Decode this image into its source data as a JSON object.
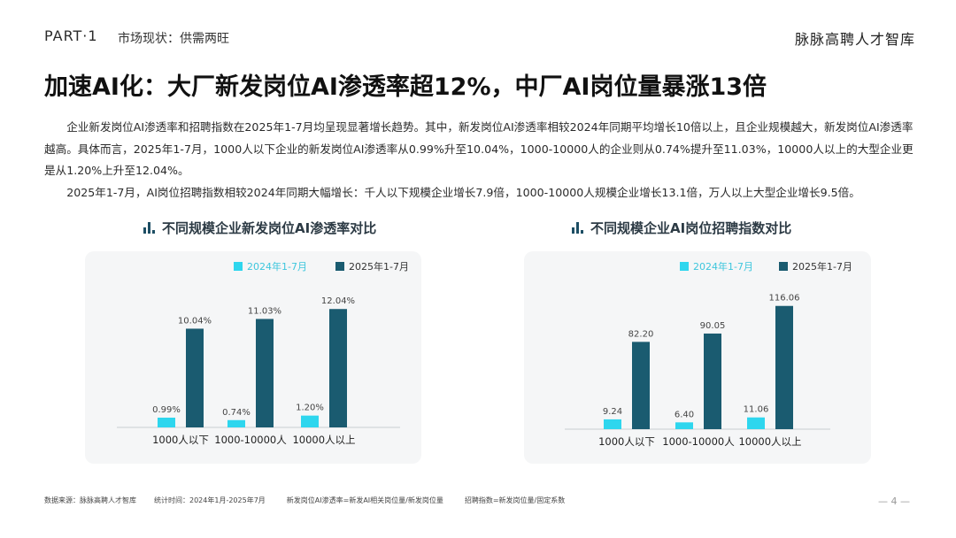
{
  "header": {
    "part": "PART·1",
    "section": "市场现状：供需两旺",
    "brand": "脉脉高聘人才智库"
  },
  "headline": "加速AI化：大厂新发岗位AI渗透率超12%，中厂AI岗位量暴涨13倍",
  "body": {
    "paragraph1": "企业新发岗位AI渗透率和招聘指数在2025年1-7月均呈现显著增长趋势。其中，新发岗位AI渗透率相较2024年同期平均增长10倍以上，且企业规模越大，新发岗位AI渗透率越高。具体而言，2025年1-7月，1000人以下企业的新发岗位AI渗透率从0.99%升至10.04%，1000-10000人的企业则从0.74%提升至11.03%，10000人以上的大型企业更是从1.20%上升至12.04%。",
    "paragraph2": "2025年1-7月，AI岗位招聘指数相较2024年同期大幅增长：千人以下规模企业增长7.9倍，1000-10000人规模企业增长13.1倍，万人以上大型企业增长9.5倍。"
  },
  "colors": {
    "series_2024": "#2ed6ee",
    "series_2025": "#1a5b70",
    "panel_bg": "#f5f6f7"
  },
  "chart_data": [
    {
      "type": "bar",
      "title": "不同规模企业新发岗位AI渗透率对比",
      "icon": "bar-chart-icon",
      "categories": [
        "1000人以下",
        "1000-10000人",
        "10000人以上"
      ],
      "series": [
        {
          "name": "2024年1-7月",
          "values": [
            0.99,
            0.74,
            1.2
          ],
          "labels": [
            "0.99%",
            "0.74%",
            "1.20%"
          ]
        },
        {
          "name": "2025年1-7月",
          "values": [
            10.04,
            11.03,
            12.04
          ],
          "labels": [
            "10.04%",
            "11.03%",
            "12.04%"
          ]
        }
      ],
      "ylim": [
        0,
        13.5
      ],
      "legend": "top",
      "grid": false
    },
    {
      "type": "bar",
      "title": "不同规模企业AI岗位招聘指数对比",
      "icon": "bar-chart-icon",
      "categories": [
        "1000人以下",
        "1000-10000人",
        "10000人以上"
      ],
      "series": [
        {
          "name": "2024年1-7月",
          "values": [
            9.24,
            6.4,
            11.06
          ],
          "labels": [
            "9.24",
            "6.40",
            "11.06"
          ]
        },
        {
          "name": "2025年1-7月",
          "values": [
            82.2,
            90.05,
            116.06
          ],
          "labels": [
            "82.20",
            "90.05",
            "116.06"
          ]
        }
      ],
      "ylim": [
        0,
        125
      ],
      "legend": "top",
      "grid": false
    }
  ],
  "footer": {
    "source": "数据来源：脉脉高聘人才智库",
    "period": "统计时间：2024年1月-2025年7月",
    "def1": "新发岗位AI渗透率=新发AI相关岗位量/新发岗位量",
    "def2": "招聘指数=新发岗位量/固定系数",
    "page": "— 4 —"
  }
}
